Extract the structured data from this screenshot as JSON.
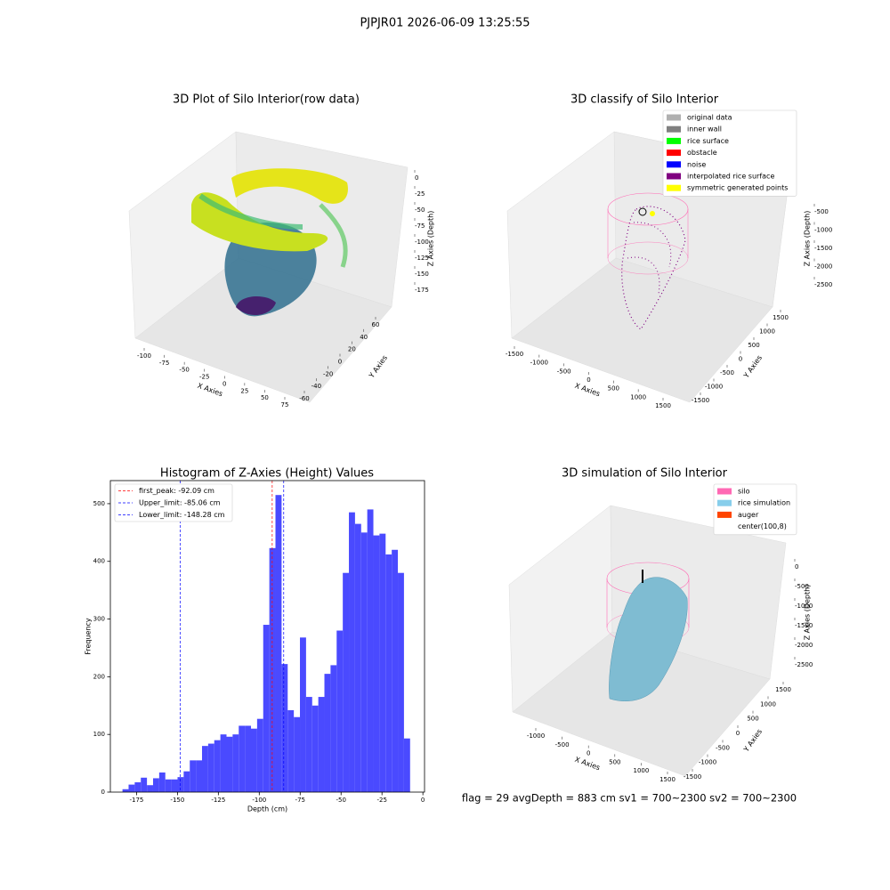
{
  "suptitle": "PJPJR01 2026-06-09 13:25:55",
  "footer": "flag = 29  avgDepth = 883 cm  sv1 = 700~2300  sv2 = 700~2300",
  "chart_data": [
    {
      "type": "scatter3d",
      "title": "3D Plot of Silo Interior(row data)",
      "xlabel": "X Axies",
      "ylabel": "Y Axies",
      "zlabel": "Z Axies (Depth)",
      "xticks": [
        -100,
        -75,
        -50,
        -25,
        0,
        25,
        50,
        75
      ],
      "yticks": [
        -60,
        -40,
        -20,
        0,
        20,
        40,
        60
      ],
      "zticks": [
        0,
        -25,
        -50,
        -75,
        -100,
        -125,
        -150,
        -175
      ]
    },
    {
      "type": "scatter3d",
      "title": "3D classify of Silo Interior",
      "xlabel": "X Axies",
      "ylabel": "Y Axies",
      "zlabel": "Z Axies (Depth)",
      "xticks": [
        -1500,
        -1000,
        -500,
        0,
        500,
        1000,
        1500
      ],
      "yticks": [
        -1500,
        -1000,
        -500,
        0,
        500,
        1000,
        1500
      ],
      "zticks": [
        -500,
        -1000,
        -1500,
        -2000,
        -2500
      ],
      "legend": [
        {
          "name": "original data",
          "color": "#b0b0b0"
        },
        {
          "name": "inner wall",
          "color": "#808080"
        },
        {
          "name": "rice surface",
          "color": "#00ff00"
        },
        {
          "name": "obstacle",
          "color": "#ff0000"
        },
        {
          "name": "noise",
          "color": "#0000ff"
        },
        {
          "name": "interpolated rice surface",
          "color": "#800080"
        },
        {
          "name": "symmetric generated points",
          "color": "#ffff00"
        }
      ]
    },
    {
      "type": "histogram",
      "title": "Histogram of Z-Axies (Height) Values",
      "xlabel": "Depth (cm)",
      "ylabel": "Frequency",
      "color": "#4a4aff",
      "bins": [
        -183.6,
        -179.86,
        -176.12,
        -172.38,
        -168.64,
        -164.9,
        -161.16,
        -157.42,
        -153.68,
        -149.94,
        -146.2,
        -142.46,
        -138.72,
        -134.98,
        -131.24,
        -127.5,
        -123.76,
        -120.02,
        -116.28,
        -112.54,
        -108.8,
        -105.06,
        -101.32,
        -97.58,
        -93.84,
        -90.1,
        -86.36,
        -82.62,
        -78.88,
        -75.14,
        -71.4,
        -67.66,
        -63.92,
        -60.18,
        -56.44,
        -52.7,
        -48.96,
        -45.22,
        -41.48,
        -37.74,
        -34.0,
        -30.26,
        -26.52,
        -22.78,
        -19.04,
        -15.3,
        -11.56,
        -7.82
      ],
      "values": [
        5,
        13,
        17,
        25,
        12,
        24,
        34,
        22,
        22,
        26,
        36,
        55,
        55,
        80,
        84,
        90,
        100,
        96,
        100,
        115,
        115,
        110,
        127,
        290,
        423,
        515,
        222,
        142,
        130,
        268,
        165,
        150,
        165,
        205,
        220,
        280,
        380,
        485,
        465,
        450,
        490,
        445,
        448,
        412,
        420,
        380,
        93
      ],
      "lines": [
        {
          "name": "first_peak: -92.09 cm",
          "value": -92.09,
          "color": "#ff0000"
        },
        {
          "name": "Upper_limit: -85.06 cm",
          "value": -85.06,
          "color": "#0000ff"
        },
        {
          "name": "Lower_limit: -148.28 cm",
          "value": -148.28,
          "color": "#0000ff"
        }
      ],
      "xlim": [
        -191,
        1
      ],
      "ylim": [
        0,
        540
      ],
      "xticks": [
        -175,
        -150,
        -125,
        -100,
        -75,
        -50,
        -25,
        0
      ],
      "yticks": [
        0,
        100,
        200,
        300,
        400,
        500
      ],
      "legend_position": "upper left"
    },
    {
      "type": "surface3d",
      "title": "3D simulation of Silo Interior",
      "xlabel": "X Axies",
      "ylabel": "Y Axies",
      "zlabel": "Z Axies (Depth)",
      "xticks": [
        -1000,
        -500,
        0,
        500,
        1000,
        1500
      ],
      "yticks": [
        -1500,
        -1000,
        -500,
        0,
        500,
        1000,
        1500
      ],
      "zticks": [
        0,
        -500,
        -1000,
        -1500,
        -2000,
        -2500
      ],
      "legend": [
        {
          "name": "silo",
          "color": "#ff69b4"
        },
        {
          "name": "rice simulation",
          "color": "#87ceeb"
        },
        {
          "name": "auger",
          "color": "#ff4500"
        },
        {
          "name": "center(100,8)",
          "color": null
        }
      ]
    }
  ]
}
